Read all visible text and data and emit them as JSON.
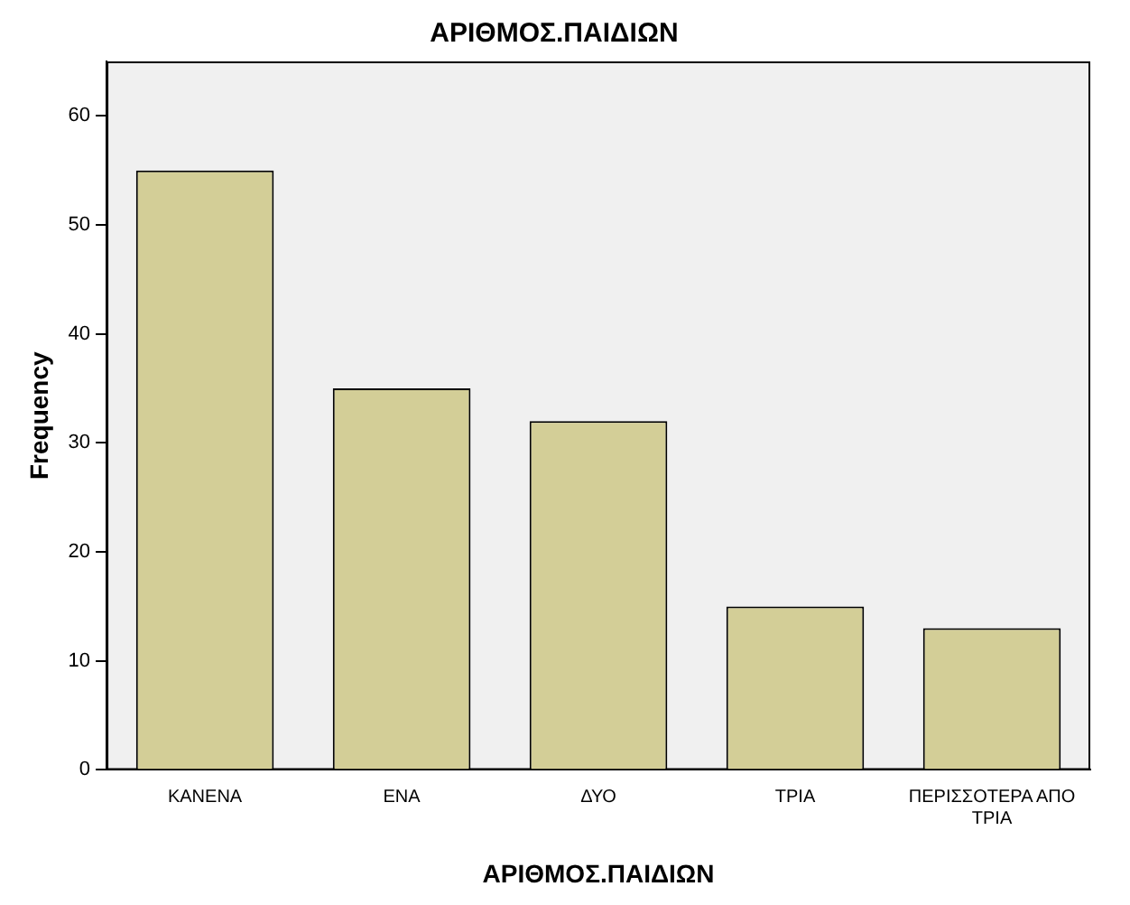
{
  "chart_data": {
    "type": "bar",
    "title": "ΑΡΙΘΜΟΣ.ΠΑΙΔΙΩΝ",
    "xlabel": "ΑΡΙΘΜΟΣ.ΠΑΙΔΙΩΝ",
    "ylabel": "Frequency",
    "categories": [
      "ΚΑΝΕΝΑ",
      "ΕΝΑ",
      "ΔΥΟ",
      "ΤΡΙΑ",
      "ΠΕΡΙΣΣΟΤΕΡΑ ΑΠΟ ΤΡΙΑ"
    ],
    "values": [
      55,
      35,
      32,
      15,
      13
    ],
    "color": "#d3ce97",
    "ylim": [
      0,
      65
    ],
    "yticks": [
      0,
      10,
      20,
      30,
      40,
      50,
      60
    ],
    "grid": false,
    "legend": false
  }
}
